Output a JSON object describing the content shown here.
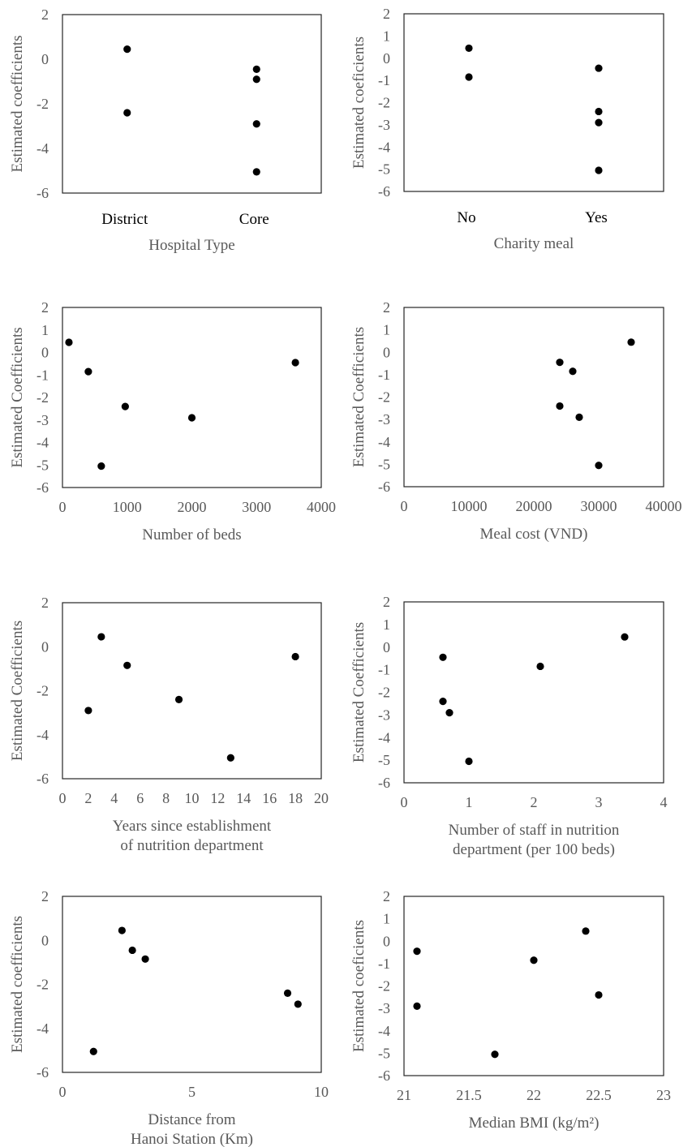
{
  "figure": {
    "charts": [
      {
        "id": "hospital-type"
      },
      {
        "id": "charity-meal"
      },
      {
        "id": "number-of-beds"
      },
      {
        "id": "meal-cost"
      },
      {
        "id": "years-since-establishment"
      },
      {
        "id": "staff-nutrition"
      },
      {
        "id": "distance-hanoi"
      },
      {
        "id": "median-bmi"
      }
    ]
  },
  "chart_data": [
    {
      "type": "scatter",
      "ylabel": "Estimated coefficients",
      "xlabel": [
        "Hospital Type"
      ],
      "x_categorical": true,
      "categories": [
        "District",
        "Core"
      ],
      "xlim": [
        0,
        2
      ],
      "xticks": [],
      "ylim": [
        -6,
        2
      ],
      "yticks": [
        2,
        0,
        -2,
        -4,
        -6
      ],
      "points": [
        {
          "x": "District",
          "y": 0.45
        },
        {
          "x": "District",
          "y": -2.4
        },
        {
          "x": "Core",
          "y": -0.45
        },
        {
          "x": "Core",
          "y": -0.9
        },
        {
          "x": "Core",
          "y": -2.9
        },
        {
          "x": "Core",
          "y": -5.05
        }
      ]
    },
    {
      "type": "scatter",
      "ylabel": "Estimated coeficients",
      "xlabel": [
        "Charity meal"
      ],
      "x_categorical": true,
      "categories": [
        "No",
        "Yes"
      ],
      "xlim": [
        0,
        2
      ],
      "xticks": [],
      "ylim": [
        -6,
        2
      ],
      "yticks": [
        2,
        1,
        0,
        -1,
        -2,
        -3,
        -4,
        -5,
        -6
      ],
      "points": [
        {
          "x": "No",
          "y": 0.45
        },
        {
          "x": "No",
          "y": -0.85
        },
        {
          "x": "Yes",
          "y": -0.45
        },
        {
          "x": "Yes",
          "y": -2.4
        },
        {
          "x": "Yes",
          "y": -2.9
        },
        {
          "x": "Yes",
          "y": -5.05
        }
      ]
    },
    {
      "type": "scatter",
      "ylabel": "Estimated Coefficients",
      "xlabel": [
        "Number of beds"
      ],
      "x_categorical": false,
      "xlim": [
        0,
        4000
      ],
      "xticks": [
        "0",
        "1000",
        "2000",
        "3000",
        "4000"
      ],
      "ylim": [
        -6,
        2
      ],
      "yticks": [
        2,
        1,
        0,
        -1,
        -2,
        -3,
        -4,
        -5,
        -6
      ],
      "points": [
        {
          "x": 100,
          "y": 0.45
        },
        {
          "x": 400,
          "y": -0.85
        },
        {
          "x": 600,
          "y": -5.05
        },
        {
          "x": 970,
          "y": -2.4
        },
        {
          "x": 2000,
          "y": -2.9
        },
        {
          "x": 3600,
          "y": -0.45
        }
      ]
    },
    {
      "type": "scatter",
      "ylabel": "Estimated Coefficients",
      "xlabel": [
        "Meal cost (VND)"
      ],
      "x_categorical": false,
      "xlim": [
        0,
        40000
      ],
      "xticks": [
        "0",
        "10000",
        "20000",
        "30000",
        "40000"
      ],
      "ylim": [
        -6,
        2
      ],
      "yticks": [
        2,
        1,
        0,
        -1,
        -2,
        -3,
        -4,
        -5,
        -6
      ],
      "points": [
        {
          "x": 24000,
          "y": -0.45
        },
        {
          "x": 24000,
          "y": -2.4
        },
        {
          "x": 26000,
          "y": -0.85
        },
        {
          "x": 27000,
          "y": -2.9
        },
        {
          "x": 30000,
          "y": -5.05
        },
        {
          "x": 35000,
          "y": 0.45
        }
      ]
    },
    {
      "type": "scatter",
      "ylabel": "Estimated Coefficients",
      "xlabel": [
        "Years since establishment",
        "of nutrition department"
      ],
      "x_categorical": false,
      "xlim": [
        0,
        20
      ],
      "xticks": [
        "0",
        "2",
        "4",
        "6",
        "8",
        "10",
        "12",
        "14",
        "16",
        "18",
        "20"
      ],
      "ylim": [
        -6,
        2
      ],
      "yticks": [
        2,
        0,
        -2,
        -4,
        -6
      ],
      "points": [
        {
          "x": 2,
          "y": -2.9
        },
        {
          "x": 3,
          "y": 0.45
        },
        {
          "x": 5,
          "y": -0.85
        },
        {
          "x": 9,
          "y": -2.4
        },
        {
          "x": 13,
          "y": -5.05
        },
        {
          "x": 18,
          "y": -0.45
        }
      ]
    },
    {
      "type": "scatter",
      "ylabel": "Estimated Coefficients",
      "xlabel": [
        "Number of staff in nutrition",
        "department (per 100 beds)"
      ],
      "x_categorical": false,
      "xlim": [
        0,
        4
      ],
      "xticks": [
        "0",
        "1",
        "2",
        "3",
        "4"
      ],
      "ylim": [
        -6,
        2
      ],
      "yticks": [
        2,
        1,
        0,
        -1,
        -2,
        -3,
        -4,
        -5,
        -6
      ],
      "points": [
        {
          "x": 0.6,
          "y": -0.45
        },
        {
          "x": 0.6,
          "y": -2.4
        },
        {
          "x": 0.7,
          "y": -2.9
        },
        {
          "x": 1.0,
          "y": -5.05
        },
        {
          "x": 2.1,
          "y": -0.85
        },
        {
          "x": 3.4,
          "y": 0.45
        }
      ]
    },
    {
      "type": "scatter",
      "ylabel": "Estimated coefficients",
      "xlabel": [
        "Distance from",
        "Hanoi Station (Km)"
      ],
      "x_categorical": false,
      "xlim": [
        0,
        10
      ],
      "xticks": [
        "0",
        "5",
        "10"
      ],
      "ylim": [
        -6,
        2
      ],
      "yticks": [
        2,
        0,
        -2,
        -4,
        -6
      ],
      "points": [
        {
          "x": 1.2,
          "y": -5.05
        },
        {
          "x": 2.3,
          "y": 0.45
        },
        {
          "x": 2.7,
          "y": -0.45
        },
        {
          "x": 3.2,
          "y": -0.85
        },
        {
          "x": 8.7,
          "y": -2.4
        },
        {
          "x": 9.1,
          "y": -2.9
        }
      ]
    },
    {
      "type": "scatter",
      "ylabel": "Estimated coeficients",
      "xlabel": [
        "Median BMI (kg/m²)"
      ],
      "x_categorical": false,
      "xlim": [
        21,
        23
      ],
      "xticks": [
        "21",
        "21.5",
        "22",
        "22.5",
        "23"
      ],
      "ylim": [
        -6,
        2
      ],
      "yticks": [
        2,
        1,
        0,
        -1,
        -2,
        -3,
        -4,
        -5,
        -6
      ],
      "points": [
        {
          "x": 21.1,
          "y": -0.45
        },
        {
          "x": 21.1,
          "y": -2.9
        },
        {
          "x": 21.7,
          "y": -5.05
        },
        {
          "x": 22.0,
          "y": -0.85
        },
        {
          "x": 22.4,
          "y": 0.45
        },
        {
          "x": 22.5,
          "y": -2.4
        }
      ]
    }
  ]
}
